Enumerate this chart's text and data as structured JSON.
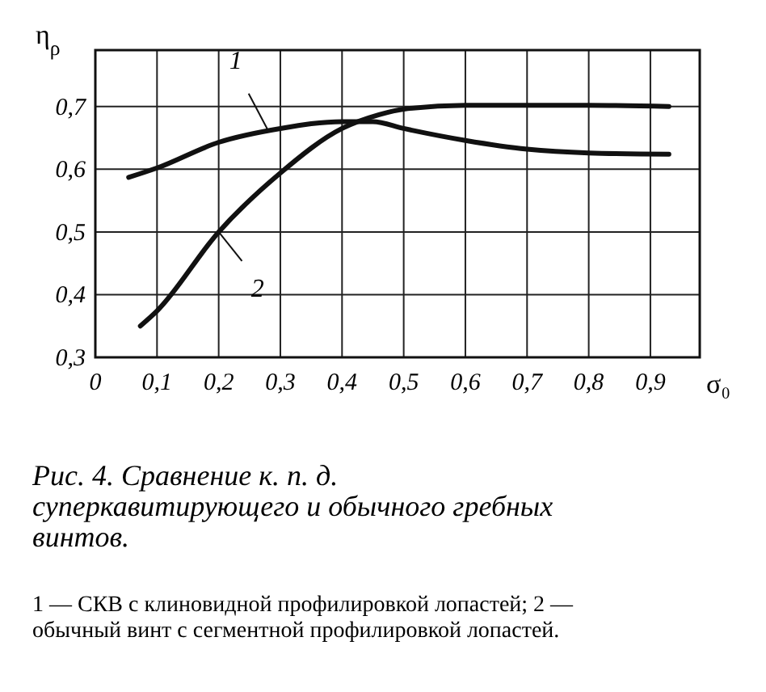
{
  "chart_data": {
    "type": "line",
    "title": "Рис. 4. Сравнение к. п. д. суперкавитирующего и обычного гребных винтов.",
    "xlabel": "σ₀",
    "ylabel": "η$_{ρ}$",
    "xlim": [
      0,
      0.98
    ],
    "ylim": [
      0.3,
      0.79
    ],
    "xticks": [
      {
        "value": 0,
        "label": "0"
      },
      {
        "value": 0.1,
        "label": "0,1"
      },
      {
        "value": 0.2,
        "label": "0,2"
      },
      {
        "value": 0.3,
        "label": "0,3"
      },
      {
        "value": 0.4,
        "label": "0,4"
      },
      {
        "value": 0.5,
        "label": "0,5"
      },
      {
        "value": 0.6,
        "label": "0,6"
      },
      {
        "value": 0.7,
        "label": "0,7"
      },
      {
        "value": 0.8,
        "label": "0,8"
      },
      {
        "value": 0.9,
        "label": "0,9"
      }
    ],
    "yticks": [
      {
        "value": 0.3,
        "label": "0,3"
      },
      {
        "value": 0.4,
        "label": "0,4"
      },
      {
        "value": 0.5,
        "label": "0,5"
      },
      {
        "value": 0.6,
        "label": "0,6"
      },
      {
        "value": 0.7,
        "label": "0,7"
      }
    ],
    "grid": true,
    "line_style": "solid",
    "series": [
      {
        "color": "#111111",
        "x": [
          0.054,
          0.1,
          0.2,
          0.3,
          0.4,
          0.45,
          0.5,
          0.6,
          0.7,
          0.8,
          0.93
        ],
        "values": [
          0.587,
          0.602,
          0.643,
          0.665,
          0.676,
          0.676,
          0.665,
          0.646,
          0.632,
          0.626,
          0.624
        ]
      },
      {
        "color": "#111111",
        "x": [
          0.073,
          0.1,
          0.2,
          0.3,
          0.4,
          0.46,
          0.5,
          0.6,
          0.8,
          0.93
        ],
        "values": [
          0.35,
          0.374,
          0.5,
          0.594,
          0.665,
          0.687,
          0.696,
          0.702,
          0.702,
          0.7
        ]
      }
    ],
    "annotations": [
      {
        "text": "1",
        "x": 0.28,
        "y": 0.662
      },
      {
        "text": "2",
        "x": 0.2,
        "y": 0.5
      },
      "1 — СКВ с клиновидной профилировкой лопастей; 2 — обычный винт с сегментной профилировкой лопастей."
    ]
  }
}
